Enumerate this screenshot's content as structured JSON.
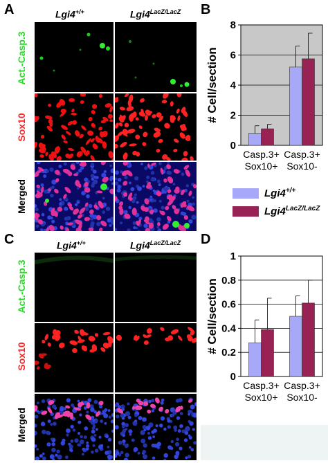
{
  "panels": {
    "A": {
      "letter": "A",
      "col_headers": [
        {
          "gene": "Lgi4",
          "genotype": "+/+"
        },
        {
          "gene": "Lgi4",
          "genotype": "LacZ/LacZ"
        }
      ],
      "rows": [
        {
          "label": "Act.-Casp.3",
          "color": "#22dd22"
        },
        {
          "label": "Sox10",
          "color": "#ff2222"
        },
        {
          "label": "Merged",
          "color": "#000000"
        }
      ]
    },
    "C": {
      "letter": "C",
      "col_headers": [
        {
          "gene": "Lgi4",
          "genotype": "+/+"
        },
        {
          "gene": "Lgi4",
          "genotype": "LacZ/LacZ"
        }
      ],
      "rows": [
        {
          "label": "Act.-Casp.3",
          "color": "#22dd22"
        },
        {
          "label": "Sox10",
          "color": "#ff2222"
        },
        {
          "label": "Merged",
          "color": "#000000"
        }
      ]
    }
  },
  "legend": {
    "items": [
      {
        "gene": "Lgi4",
        "genotype": "+/+",
        "color": "#a8a8f8"
      },
      {
        "gene": "Lgi4",
        "genotype": "LacZ/LacZ",
        "color": "#992255"
      }
    ]
  },
  "chart_data": [
    {
      "panel": "B",
      "type": "bar",
      "ylabel": "# Cell/section",
      "ylim": [
        0,
        8
      ],
      "yticks": [
        "0",
        "2",
        "4",
        "6",
        "8"
      ],
      "ytick_values": [
        0,
        2,
        4,
        6,
        8
      ],
      "grid": true,
      "background": "#c8c8c8",
      "categories": [
        [
          "Casp.3+",
          "Sox10+"
        ],
        [
          "Casp.3+",
          "Sox10-"
        ]
      ],
      "series": [
        {
          "color": "#a8a8f8",
          "values": [
            0.8,
            5.2
          ],
          "errors": [
            0.5,
            1.4
          ]
        },
        {
          "color": "#992255",
          "values": [
            1.1,
            5.75
          ],
          "errors": [
            0.3,
            1.7
          ]
        }
      ]
    },
    {
      "panel": "D",
      "type": "bar",
      "ylabel": "# Cell/section",
      "ylim": [
        0,
        1
      ],
      "yticks": [
        "0",
        "0.2",
        "0.4",
        "0.6",
        "0.8",
        "1"
      ],
      "ytick_values": [
        0,
        0.2,
        0.4,
        0.6,
        0.8,
        1
      ],
      "grid": true,
      "background": "#ffffff",
      "categories": [
        [
          "Casp.3+",
          "Sox10+"
        ],
        [
          "Casp.3+",
          "Sox10-"
        ]
      ],
      "series": [
        {
          "color": "#a8a8f8",
          "values": [
            0.28,
            0.5
          ],
          "errors": [
            0.19,
            0.17
          ]
        },
        {
          "color": "#992255",
          "values": [
            0.39,
            0.61
          ],
          "errors": [
            0.26,
            0.19
          ]
        }
      ]
    }
  ]
}
